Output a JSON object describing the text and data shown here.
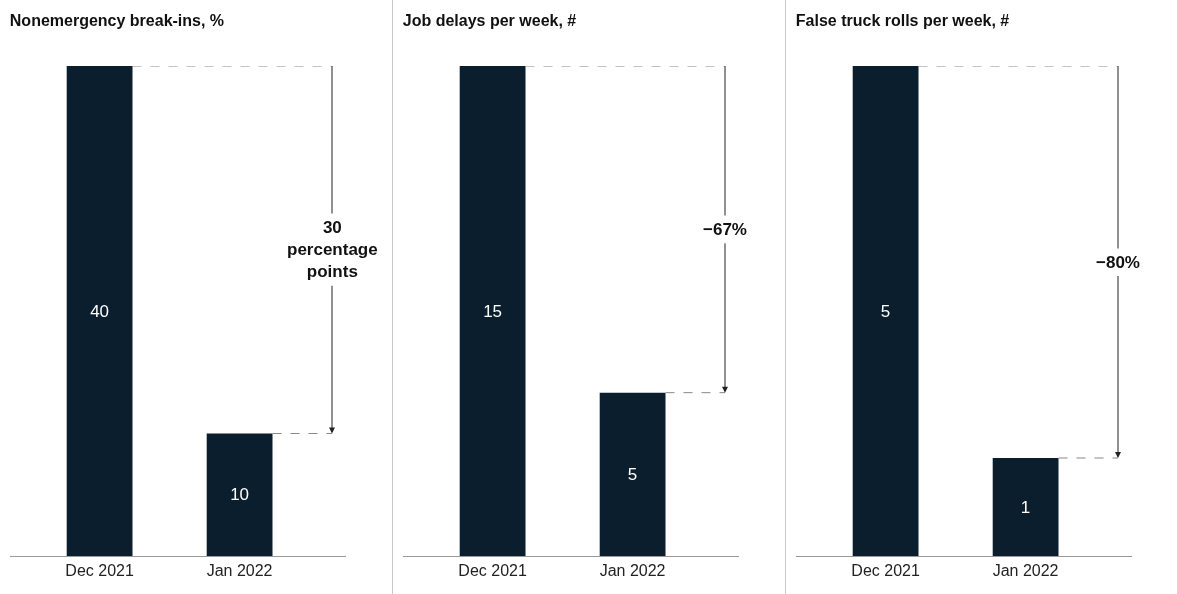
{
  "chart_data": [
    {
      "type": "bar",
      "title": "Nonemergency break-ins, %",
      "categories": [
        "Dec 2021",
        "Jan 2022"
      ],
      "values": [
        40,
        10
      ],
      "color": "#0b1e2d",
      "data_labels": true,
      "annotations": [
        "30 percentage points"
      ]
    },
    {
      "type": "bar",
      "title": "Job delays per week, #",
      "categories": [
        "Dec 2021",
        "Jan 2022"
      ],
      "values": [
        15,
        5
      ],
      "color": "#0b1e2d",
      "data_labels": true,
      "annotations": [
        "−67%"
      ]
    },
    {
      "type": "bar",
      "title": "False truck rolls per week, #",
      "categories": [
        "Dec 2021",
        "Jan 2022"
      ],
      "values": [
        5,
        1
      ],
      "color": "#0b1e2d",
      "data_labels": true,
      "annotations": [
        "−80%"
      ]
    }
  ]
}
